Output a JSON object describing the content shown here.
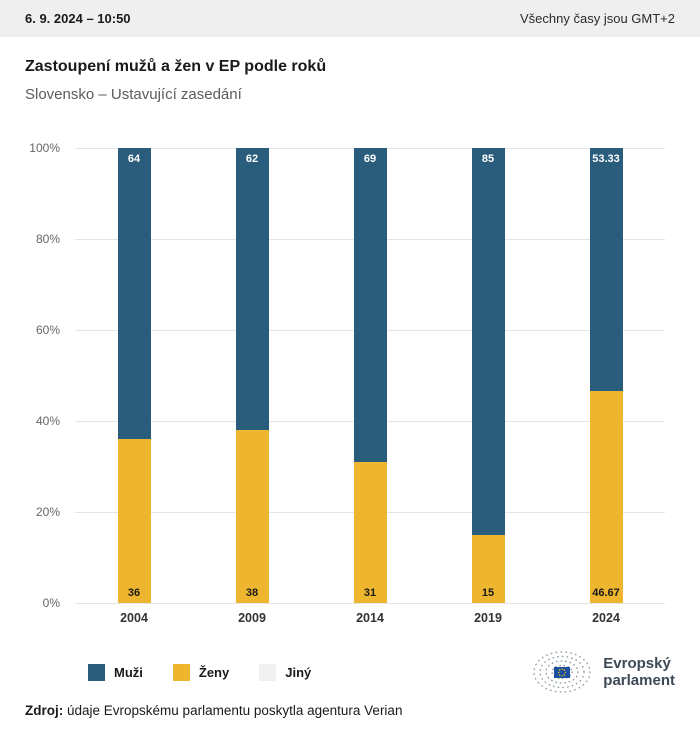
{
  "header": {
    "datetime": "6. 9. 2024 – 10:50",
    "timezone": "Všechny časy jsou GMT+2"
  },
  "chart_data": {
    "type": "bar",
    "stacked": true,
    "title": "Zastoupení mužů a žen v EP podle roků",
    "subtitle": "Slovensko – Ustavující zasedání",
    "categories": [
      "2004",
      "2009",
      "2014",
      "2019",
      "2024"
    ],
    "series": [
      {
        "name": "Muži",
        "color": "#2a5d7c",
        "values": [
          64,
          62,
          69,
          85,
          53.33
        ],
        "labels": [
          "64",
          "62",
          "69",
          "85",
          "53.33"
        ],
        "label_color": "#ffffff"
      },
      {
        "name": "Ženy",
        "color": "#eeb62f",
        "values": [
          36,
          38,
          31,
          15,
          46.67
        ],
        "labels": [
          "36",
          "38",
          "31",
          "15",
          "46.67"
        ],
        "label_color": "#1a1a1a"
      },
      {
        "name": "Jiný",
        "color": "#f0f0f0",
        "values": [
          0,
          0,
          0,
          0,
          0
        ],
        "labels": [
          "",
          "",
          "",
          "",
          ""
        ],
        "label_color": "#1a1a1a"
      }
    ],
    "ylim": [
      0,
      100
    ],
    "yticks": [
      0,
      20,
      40,
      60,
      80,
      100
    ],
    "ytick_labels": [
      "0%",
      "20%",
      "40%",
      "60%",
      "80%",
      "100%"
    ],
    "grid": true,
    "legend_position": "bottom-left"
  },
  "legend": {
    "items": [
      {
        "label": "Muži",
        "color": "#2a5d7c"
      },
      {
        "label": "Ženy",
        "color": "#eeb62f"
      },
      {
        "label": "Jiný",
        "color": "#f0f0f0"
      }
    ]
  },
  "logo": {
    "line1": "Evropský",
    "line2": "parlament"
  },
  "source": {
    "label": "Zdroj:",
    "text": " údaje Evropskému parlamentu poskytla agentura Verian"
  }
}
